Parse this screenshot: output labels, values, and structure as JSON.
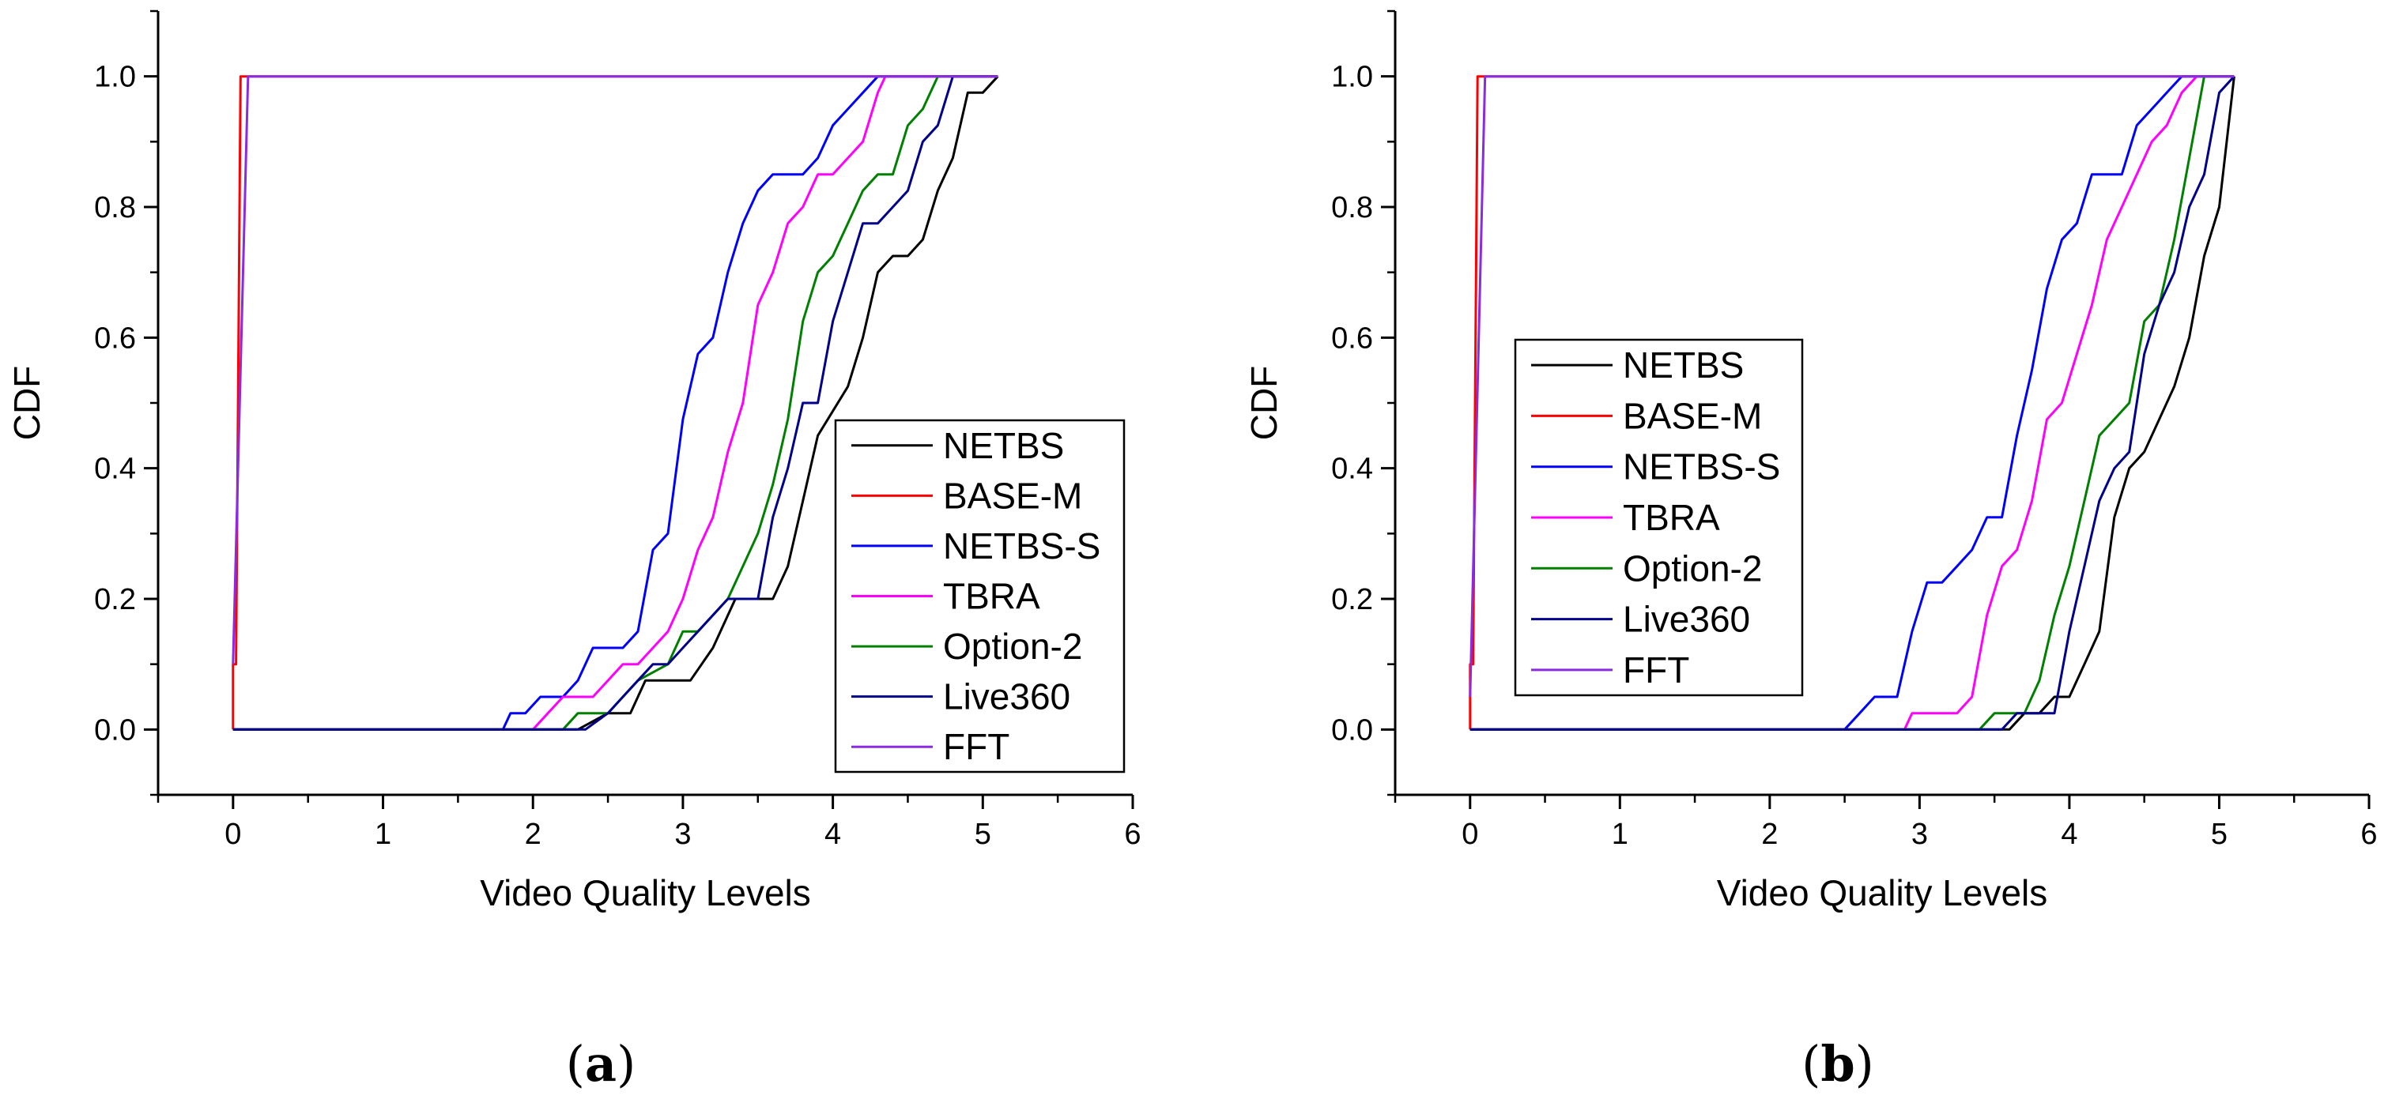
{
  "chart_data": [
    {
      "type": "line",
      "panel_label": "a",
      "title": "",
      "xlabel": "Video Quality Levels",
      "ylabel": "CDF",
      "xlim": [
        -0.5,
        6
      ],
      "ylim": [
        -0.1,
        1.1
      ],
      "xticks": [
        0,
        1,
        2,
        3,
        4,
        5,
        6
      ],
      "yticks": [
        0.0,
        0.2,
        0.4,
        0.6,
        0.8,
        1.0
      ],
      "xtick_labels": [
        "0",
        "1",
        "2",
        "3",
        "4",
        "5",
        "6"
      ],
      "ytick_labels": [
        "0.0",
        "0.2",
        "0.4",
        "0.6",
        "0.8",
        "1.0"
      ],
      "grid": false,
      "legend_position": "right-middle",
      "series": [
        {
          "name": "NETBS",
          "color": "#000000",
          "points": [
            [
              0,
              0
            ],
            [
              2.3,
              0
            ],
            [
              2.5,
              0.025
            ],
            [
              2.65,
              0.025
            ],
            [
              2.75,
              0.075
            ],
            [
              3.05,
              0.075
            ],
            [
              3.2,
              0.125
            ],
            [
              3.35,
              0.2
            ],
            [
              3.6,
              0.2
            ],
            [
              3.7,
              0.25
            ],
            [
              3.8,
              0.35
            ],
            [
              3.9,
              0.45
            ],
            [
              4.1,
              0.525
            ],
            [
              4.2,
              0.6
            ],
            [
              4.3,
              0.7
            ],
            [
              4.4,
              0.725
            ],
            [
              4.5,
              0.725
            ],
            [
              4.6,
              0.75
            ],
            [
              4.7,
              0.825
            ],
            [
              4.8,
              0.875
            ],
            [
              4.9,
              0.975
            ],
            [
              5.0,
              0.975
            ],
            [
              5.1,
              1.0
            ]
          ]
        },
        {
          "name": "BASE-M",
          "color": "#ff0000",
          "points": [
            [
              0,
              0
            ],
            [
              0,
              0.1
            ],
            [
              0.02,
              0.1
            ],
            [
              0.05,
              1.0
            ],
            [
              5.1,
              1.0
            ]
          ]
        },
        {
          "name": "NETBS-S",
          "color": "#0000ff",
          "points": [
            [
              0,
              0
            ],
            [
              1.8,
              0
            ],
            [
              1.85,
              0.025
            ],
            [
              1.95,
              0.025
            ],
            [
              2.05,
              0.05
            ],
            [
              2.2,
              0.05
            ],
            [
              2.3,
              0.075
            ],
            [
              2.4,
              0.125
            ],
            [
              2.6,
              0.125
            ],
            [
              2.7,
              0.15
            ],
            [
              2.8,
              0.275
            ],
            [
              2.9,
              0.3
            ],
            [
              3.0,
              0.475
            ],
            [
              3.1,
              0.575
            ],
            [
              3.2,
              0.6
            ],
            [
              3.3,
              0.7
            ],
            [
              3.4,
              0.775
            ],
            [
              3.5,
              0.825
            ],
            [
              3.6,
              0.85
            ],
            [
              3.8,
              0.85
            ],
            [
              3.9,
              0.875
            ],
            [
              4.0,
              0.925
            ],
            [
              4.1,
              0.95
            ],
            [
              4.2,
              0.975
            ],
            [
              4.3,
              1.0
            ],
            [
              5.1,
              1.0
            ]
          ]
        },
        {
          "name": "TBRA",
          "color": "#ff00ff",
          "points": [
            [
              0,
              0
            ],
            [
              2.0,
              0
            ],
            [
              2.2,
              0.05
            ],
            [
              2.4,
              0.05
            ],
            [
              2.5,
              0.075
            ],
            [
              2.6,
              0.1
            ],
            [
              2.7,
              0.1
            ],
            [
              2.8,
              0.125
            ],
            [
              2.9,
              0.15
            ],
            [
              3.0,
              0.2
            ],
            [
              3.1,
              0.275
            ],
            [
              3.2,
              0.325
            ],
            [
              3.3,
              0.425
            ],
            [
              3.4,
              0.5
            ],
            [
              3.5,
              0.65
            ],
            [
              3.6,
              0.7
            ],
            [
              3.7,
              0.775
            ],
            [
              3.8,
              0.8
            ],
            [
              3.9,
              0.85
            ],
            [
              4.0,
              0.85
            ],
            [
              4.1,
              0.875
            ],
            [
              4.2,
              0.9
            ],
            [
              4.3,
              0.975
            ],
            [
              4.35,
              1.0
            ],
            [
              5.1,
              1.0
            ]
          ]
        },
        {
          "name": "Option-2",
          "color": "#008000",
          "points": [
            [
              0,
              0
            ],
            [
              2.2,
              0
            ],
            [
              2.3,
              0.025
            ],
            [
              2.5,
              0.025
            ],
            [
              2.6,
              0.05
            ],
            [
              2.7,
              0.075
            ],
            [
              2.9,
              0.1
            ],
            [
              3.0,
              0.15
            ],
            [
              3.1,
              0.15
            ],
            [
              3.2,
              0.175
            ],
            [
              3.3,
              0.2
            ],
            [
              3.4,
              0.25
            ],
            [
              3.5,
              0.3
            ],
            [
              3.6,
              0.375
            ],
            [
              3.7,
              0.475
            ],
            [
              3.8,
              0.625
            ],
            [
              3.9,
              0.7
            ],
            [
              4.0,
              0.725
            ],
            [
              4.1,
              0.775
            ],
            [
              4.2,
              0.825
            ],
            [
              4.3,
              0.85
            ],
            [
              4.4,
              0.85
            ],
            [
              4.5,
              0.925
            ],
            [
              4.6,
              0.95
            ],
            [
              4.7,
              1.0
            ],
            [
              5.1,
              1.0
            ]
          ]
        },
        {
          "name": "Live360",
          "color": "#00008b",
          "points": [
            [
              0,
              0
            ],
            [
              2.35,
              0
            ],
            [
              2.5,
              0.025
            ],
            [
              2.6,
              0.05
            ],
            [
              2.7,
              0.075
            ],
            [
              2.8,
              0.1
            ],
            [
              2.9,
              0.1
            ],
            [
              3.0,
              0.125
            ],
            [
              3.1,
              0.15
            ],
            [
              3.3,
              0.2
            ],
            [
              3.5,
              0.2
            ],
            [
              3.6,
              0.325
            ],
            [
              3.7,
              0.4
            ],
            [
              3.8,
              0.5
            ],
            [
              3.9,
              0.5
            ],
            [
              4.0,
              0.625
            ],
            [
              4.1,
              0.7
            ],
            [
              4.2,
              0.775
            ],
            [
              4.3,
              0.775
            ],
            [
              4.4,
              0.8
            ],
            [
              4.5,
              0.825
            ],
            [
              4.6,
              0.9
            ],
            [
              4.7,
              0.925
            ],
            [
              4.8,
              1.0
            ],
            [
              5.1,
              1.0
            ]
          ]
        },
        {
          "name": "FFT",
          "color": "#8a2be2",
          "points": [
            [
              0,
              0.1
            ],
            [
              0.1,
              1.0
            ],
            [
              5.1,
              1.0
            ]
          ]
        }
      ]
    },
    {
      "type": "line",
      "panel_label": "b",
      "title": "",
      "xlabel": "Video Quality Levels",
      "ylabel": "CDF",
      "xlim": [
        -0.5,
        6
      ],
      "ylim": [
        -0.1,
        1.1
      ],
      "xticks": [
        0,
        1,
        2,
        3,
        4,
        5,
        6
      ],
      "yticks": [
        0.0,
        0.2,
        0.4,
        0.6,
        0.8,
        1.0
      ],
      "xtick_labels": [
        "0",
        "1",
        "2",
        "3",
        "4",
        "5",
        "6"
      ],
      "ytick_labels": [
        "0.0",
        "0.2",
        "0.4",
        "0.6",
        "0.8",
        "1.0"
      ],
      "grid": false,
      "legend_position": "left-middle",
      "series": [
        {
          "name": "NETBS",
          "color": "#000000",
          "points": [
            [
              0,
              0
            ],
            [
              3.6,
              0
            ],
            [
              3.7,
              0.025
            ],
            [
              3.8,
              0.025
            ],
            [
              3.9,
              0.05
            ],
            [
              4.0,
              0.05
            ],
            [
              4.1,
              0.1
            ],
            [
              4.2,
              0.15
            ],
            [
              4.3,
              0.325
            ],
            [
              4.4,
              0.4
            ],
            [
              4.5,
              0.425
            ],
            [
              4.6,
              0.475
            ],
            [
              4.7,
              0.525
            ],
            [
              4.8,
              0.6
            ],
            [
              4.9,
              0.725
            ],
            [
              5.0,
              0.8
            ],
            [
              5.1,
              1.0
            ]
          ]
        },
        {
          "name": "BASE-M",
          "color": "#ff0000",
          "points": [
            [
              0,
              0
            ],
            [
              0,
              0.1
            ],
            [
              0.02,
              0.1
            ],
            [
              0.05,
              1.0
            ],
            [
              5.1,
              1.0
            ]
          ]
        },
        {
          "name": "NETBS-S",
          "color": "#0000ff",
          "points": [
            [
              0,
              0
            ],
            [
              2.5,
              0
            ],
            [
              2.6,
              0.025
            ],
            [
              2.7,
              0.05
            ],
            [
              2.85,
              0.05
            ],
            [
              2.95,
              0.15
            ],
            [
              3.05,
              0.225
            ],
            [
              3.15,
              0.225
            ],
            [
              3.25,
              0.25
            ],
            [
              3.35,
              0.275
            ],
            [
              3.45,
              0.325
            ],
            [
              3.55,
              0.325
            ],
            [
              3.65,
              0.45
            ],
            [
              3.75,
              0.55
            ],
            [
              3.85,
              0.675
            ],
            [
              3.95,
              0.75
            ],
            [
              4.05,
              0.775
            ],
            [
              4.15,
              0.85
            ],
            [
              4.35,
              0.85
            ],
            [
              4.45,
              0.925
            ],
            [
              4.55,
              0.95
            ],
            [
              4.65,
              0.975
            ],
            [
              4.75,
              1.0
            ],
            [
              5.1,
              1.0
            ]
          ]
        },
        {
          "name": "TBRA",
          "color": "#ff00ff",
          "points": [
            [
              0,
              0
            ],
            [
              2.9,
              0
            ],
            [
              2.95,
              0.025
            ],
            [
              3.25,
              0.025
            ],
            [
              3.35,
              0.05
            ],
            [
              3.45,
              0.175
            ],
            [
              3.55,
              0.25
            ],
            [
              3.65,
              0.275
            ],
            [
              3.75,
              0.35
            ],
            [
              3.85,
              0.475
            ],
            [
              3.95,
              0.5
            ],
            [
              4.05,
              0.575
            ],
            [
              4.15,
              0.65
            ],
            [
              4.25,
              0.75
            ],
            [
              4.35,
              0.8
            ],
            [
              4.45,
              0.85
            ],
            [
              4.55,
              0.9
            ],
            [
              4.65,
              0.925
            ],
            [
              4.75,
              0.975
            ],
            [
              4.85,
              1.0
            ],
            [
              5.1,
              1.0
            ]
          ]
        },
        {
          "name": "Option-2",
          "color": "#008000",
          "points": [
            [
              0,
              0
            ],
            [
              3.4,
              0
            ],
            [
              3.5,
              0.025
            ],
            [
              3.7,
              0.025
            ],
            [
              3.8,
              0.075
            ],
            [
              3.9,
              0.175
            ],
            [
              4.0,
              0.25
            ],
            [
              4.1,
              0.35
            ],
            [
              4.2,
              0.45
            ],
            [
              4.3,
              0.475
            ],
            [
              4.4,
              0.5
            ],
            [
              4.5,
              0.625
            ],
            [
              4.6,
              0.65
            ],
            [
              4.7,
              0.75
            ],
            [
              4.8,
              0.875
            ],
            [
              4.9,
              1.0
            ],
            [
              5.1,
              1.0
            ]
          ]
        },
        {
          "name": "Live360",
          "color": "#00008b",
          "points": [
            [
              0,
              0
            ],
            [
              3.55,
              0
            ],
            [
              3.65,
              0.025
            ],
            [
              3.9,
              0.025
            ],
            [
              4.0,
              0.15
            ],
            [
              4.1,
              0.25
            ],
            [
              4.2,
              0.35
            ],
            [
              4.3,
              0.4
            ],
            [
              4.4,
              0.425
            ],
            [
              4.5,
              0.575
            ],
            [
              4.6,
              0.65
            ],
            [
              4.7,
              0.7
            ],
            [
              4.8,
              0.8
            ],
            [
              4.9,
              0.85
            ],
            [
              5.0,
              0.975
            ],
            [
              5.1,
              1.0
            ]
          ]
        },
        {
          "name": "FFT",
          "color": "#8a2be2",
          "points": [
            [
              0,
              0.05
            ],
            [
              0.1,
              1.0
            ],
            [
              5.1,
              1.0
            ]
          ]
        }
      ]
    }
  ]
}
